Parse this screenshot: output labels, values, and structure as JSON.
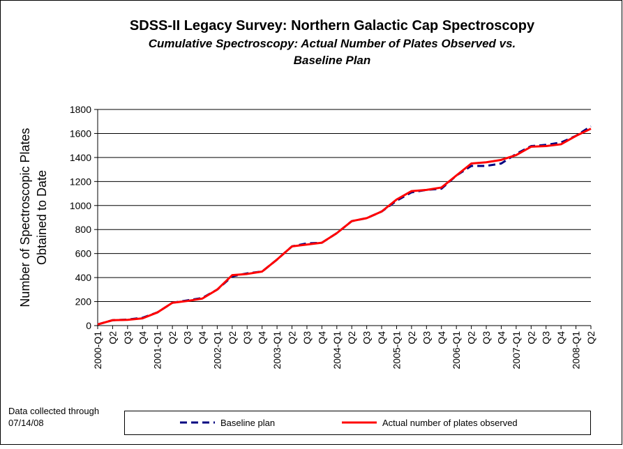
{
  "chart_data": {
    "type": "line",
    "title": "SDSS-II Legacy Survey: Northern Galactic Cap Spectroscopy",
    "subtitle": [
      "Cumulative Spectroscopy: Actual Number of Plates Observed vs.",
      "Baseline Plan"
    ],
    "y_label": [
      "Number of Spectroscopic Plates",
      "Obtained to Date"
    ],
    "annotations": [
      "Data collected through",
      "07/14/08"
    ],
    "categories": [
      "2000-Q1",
      "Q2",
      "Q3",
      "Q4",
      "2001-Q1",
      "Q2",
      "Q3",
      "Q4",
      "2002-Q1",
      "Q2",
      "Q3",
      "Q4",
      "2003-Q1",
      "Q2",
      "Q3",
      "Q4",
      "2004-Q1",
      "Q2",
      "Q3",
      "Q4",
      "2005-Q1",
      "Q2",
      "Q3",
      "Q4",
      "2006-Q1",
      "Q2",
      "Q3",
      "Q4",
      "2007-Q1",
      "Q2",
      "Q3",
      "Q4",
      "2008-Q1",
      "Q2"
    ],
    "series": [
      {
        "name": "Baseline  plan",
        "color": "#000080",
        "dash": true,
        "values": [
          10,
          45,
          50,
          65,
          110,
          190,
          210,
          230,
          300,
          410,
          435,
          450,
          550,
          660,
          685,
          690,
          770,
          870,
          895,
          950,
          1040,
          1110,
          1130,
          1140,
          1250,
          1330,
          1330,
          1350,
          1430,
          1495,
          1505,
          1525,
          1580,
          1660
        ]
      },
      {
        "name": "Actual number of plates observed",
        "color": "#ff0000",
        "dash": false,
        "values": [
          10,
          45,
          48,
          60,
          110,
          190,
          205,
          225,
          300,
          420,
          430,
          450,
          550,
          660,
          675,
          690,
          770,
          870,
          895,
          950,
          1050,
          1120,
          1130,
          1150,
          1250,
          1350,
          1360,
          1380,
          1420,
          1490,
          1495,
          1510,
          1580,
          1640
        ]
      }
    ],
    "ylim": [
      0,
      1800
    ],
    "yticks": [
      0,
      200,
      400,
      600,
      800,
      1000,
      1200,
      1400,
      1600,
      1800
    ],
    "grid": true
  }
}
